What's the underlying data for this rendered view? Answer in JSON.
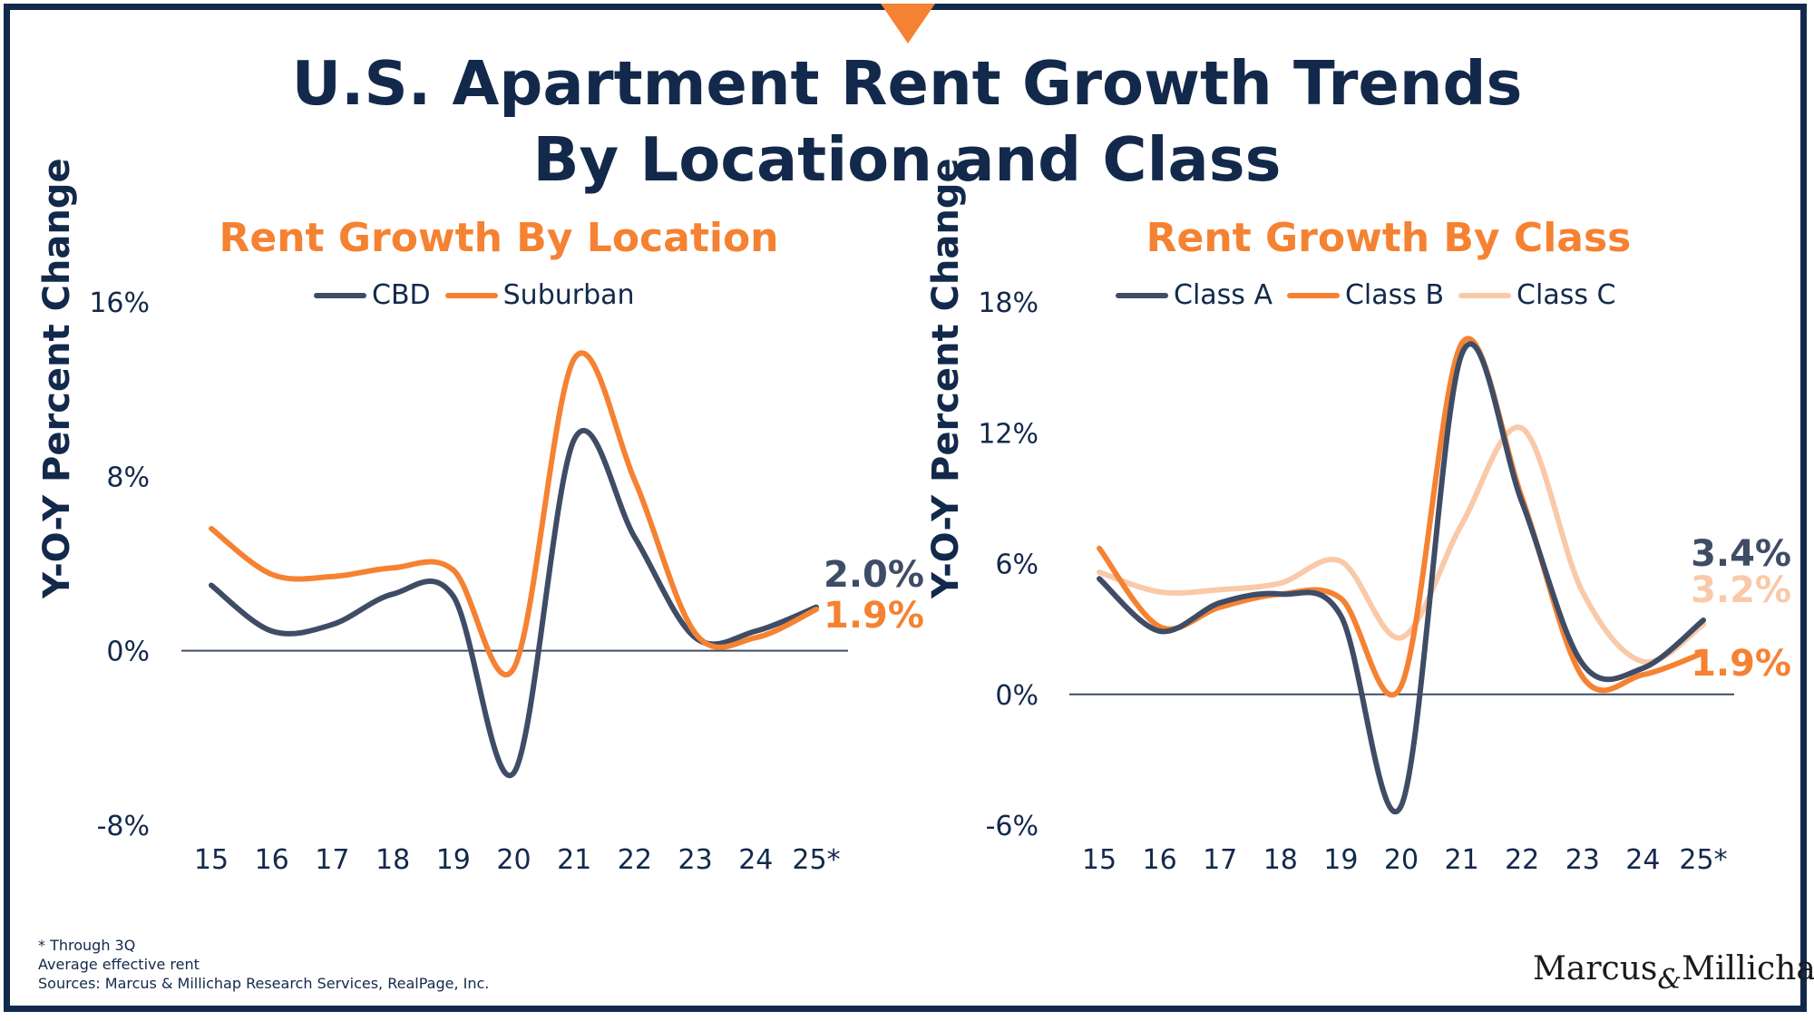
{
  "title_line1": "U.S. Apartment Rent Growth Trends",
  "title_line2": "By Location and Class",
  "footnotes": [
    "* Through 3Q",
    "Average effective rent",
    "Sources: Marcus & Millichap Research Services, RealPage, Inc."
  ],
  "logo": {
    "left": "Marcus",
    "amp": "&",
    "right": "Millichap"
  },
  "colors": {
    "navy": "#13294b",
    "orange": "#f58232",
    "slate": "#3f4c66",
    "peach": "#f9c9a8"
  },
  "chart_data": [
    {
      "type": "line",
      "title": "Rent Growth By Location",
      "ylabel": "Y-O-Y Percent Change",
      "xlabel": "",
      "ylim": [
        -8,
        16
      ],
      "yticks": [
        "-8%",
        "0%",
        "8%",
        "16%"
      ],
      "ytick_values": [
        -8,
        0,
        8,
        16
      ],
      "categories": [
        "15",
        "16",
        "17",
        "18",
        "19",
        "20",
        "21",
        "22",
        "23",
        "24",
        "25*"
      ],
      "series": [
        {
          "name": "CBD",
          "color": "#3f4c66",
          "values": [
            3.0,
            0.9,
            1.2,
            2.6,
            2.5,
            -5.6,
            9.7,
            5.2,
            0.6,
            0.9,
            2.0
          ],
          "end_label": "2.0%"
        },
        {
          "name": "Suburban",
          "color": "#f58232",
          "values": [
            5.6,
            3.5,
            3.4,
            3.8,
            3.7,
            -0.8,
            13.4,
            7.8,
            0.8,
            0.6,
            1.9
          ],
          "end_label": "1.9%"
        }
      ]
    },
    {
      "type": "line",
      "title": "Rent Growth By Class",
      "ylabel": "Y-O-Y Percent Change",
      "xlabel": "",
      "ylim": [
        -6,
        18
      ],
      "yticks": [
        "-6%",
        "0%",
        "6%",
        "12%",
        "18%"
      ],
      "ytick_values": [
        -6,
        0,
        6,
        12,
        18
      ],
      "categories": [
        "15",
        "16",
        "17",
        "18",
        "19",
        "20",
        "21",
        "22",
        "23",
        "24",
        "25*"
      ],
      "series": [
        {
          "name": "Class A",
          "color": "#3f4c66",
          "values": [
            5.3,
            2.9,
            4.2,
            4.6,
            3.6,
            -5.1,
            15.6,
            8.8,
            1.4,
            1.2,
            3.4
          ],
          "end_label": "3.4%"
        },
        {
          "name": "Class B",
          "color": "#f58232",
          "values": [
            6.7,
            3.1,
            4.0,
            4.6,
            4.4,
            0.4,
            16.1,
            9.0,
            0.8,
            0.9,
            1.9
          ],
          "end_label": "1.9%"
        },
        {
          "name": "Class C",
          "color": "#f9c9a8",
          "values": [
            5.6,
            4.7,
            4.8,
            5.1,
            6.1,
            2.6,
            7.8,
            12.2,
            4.7,
            1.5,
            3.2
          ],
          "end_label": "3.2%"
        }
      ]
    }
  ]
}
